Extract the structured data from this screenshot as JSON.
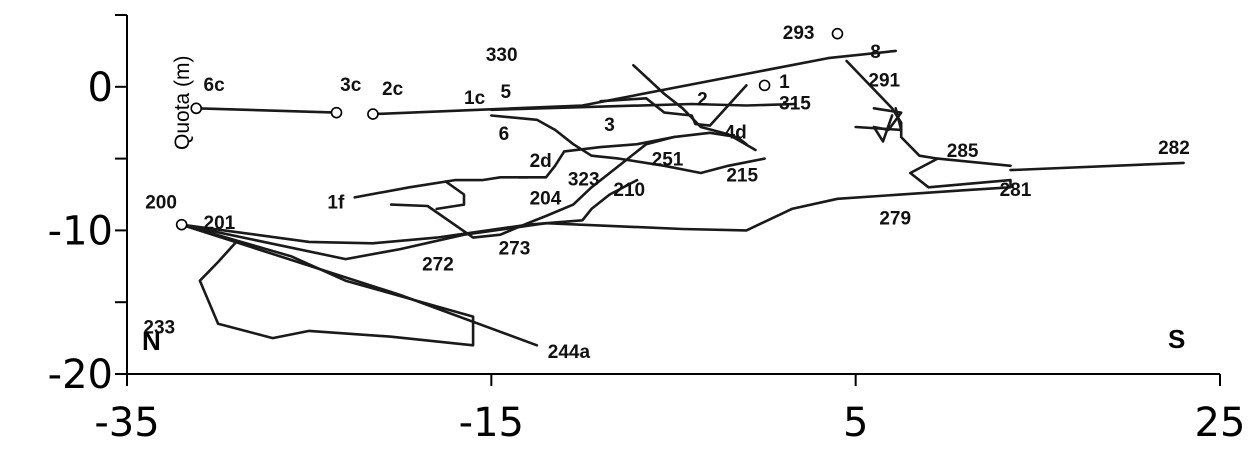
{
  "chart_data": {
    "type": "line",
    "title": "",
    "xlabel": "",
    "ylabel": "Quota (m)",
    "xlim": [
      -35,
      25
    ],
    "ylim": [
      -20,
      5
    ],
    "x_ticks": [
      "-35",
      "-15",
      "5",
      "25"
    ],
    "y_ticks": [
      "0",
      "-10",
      "-20"
    ],
    "grid": false,
    "legend": "none",
    "corner_labels": {
      "left": "N",
      "right": "S"
    },
    "line_color": "#1a1a1a",
    "series": [
      {
        "values": [
          [
            -31.2,
            -1.5
          ],
          [
            -23.5,
            -1.8
          ]
        ]
      },
      {
        "values": [
          [
            -21.5,
            -1.9
          ],
          [
            -10.0,
            -1.3
          ],
          [
            3.5,
            2.0
          ],
          [
            7.2,
            2.5
          ]
        ]
      },
      {
        "values": [
          [
            -15.0,
            -1.6
          ],
          [
            -4.0,
            -1.2
          ],
          [
            -1.0,
            -1.3
          ],
          [
            1.7,
            -1.2
          ]
        ]
      },
      {
        "values": [
          [
            -7.2,
            1.5
          ],
          [
            -5.5,
            -0.5
          ],
          [
            -4.5,
            -1.5
          ],
          [
            -3.5,
            -2.8
          ],
          [
            -2.0,
            -3.3
          ],
          [
            -0.5,
            -4.4
          ]
        ]
      },
      {
        "values": [
          [
            -15.0,
            -2.0
          ],
          [
            -12.5,
            -2.3
          ],
          [
            -11.5,
            -3.0
          ],
          [
            -10.5,
            -4.0
          ],
          [
            -9.5,
            -4.8
          ],
          [
            -8.0,
            -5.0
          ],
          [
            -5.5,
            -5.5
          ],
          [
            -3.5,
            -6.0
          ],
          [
            -2.0,
            -5.5
          ],
          [
            0.0,
            -5.0
          ]
        ]
      },
      {
        "values": [
          [
            -13.5,
            -6.3
          ],
          [
            -12.0,
            -6.3
          ],
          [
            -11.5,
            -5.5
          ],
          [
            -11.0,
            -4.5
          ],
          [
            -9.0,
            -4.2
          ],
          [
            -7.0,
            -4.0
          ],
          [
            -5.0,
            -3.5
          ],
          [
            -3.0,
            -3.2
          ],
          [
            -1.5,
            -3.5
          ],
          [
            -1.0,
            -4.0
          ]
        ]
      },
      {
        "values": [
          [
            -9.0,
            -1.0
          ],
          [
            -6.5,
            -0.8
          ],
          [
            -5.5,
            -1.8
          ],
          [
            -4.0,
            -2.0
          ],
          [
            -3.8,
            -2.6
          ],
          [
            -3.0,
            -2.7
          ],
          [
            -1.0,
            0.1
          ]
        ]
      },
      {
        "values": [
          [
            -22.5,
            -7.7
          ],
          [
            -19.5,
            -7.0
          ],
          [
            -17.0,
            -6.5
          ],
          [
            -15.5,
            -6.5
          ],
          [
            -14.5,
            -6.3
          ],
          [
            -13.0,
            -6.3
          ]
        ]
      },
      {
        "values": [
          [
            -20.5,
            -8.2
          ],
          [
            -18.5,
            -8.3
          ],
          [
            -16.0,
            -10.5
          ],
          [
            -14.5,
            -10.3
          ],
          [
            -13.0,
            -9.5
          ],
          [
            -12.0,
            -9.0
          ],
          [
            -10.5,
            -8.2
          ],
          [
            -9.5,
            -7.0
          ],
          [
            -8.5,
            -6.0
          ],
          [
            -7.5,
            -5.0
          ],
          [
            -6.5,
            -4.0
          ],
          [
            -5.0,
            -3.5
          ]
        ]
      },
      {
        "values": [
          [
            -17.5,
            -6.6
          ],
          [
            -16.5,
            -7.5
          ],
          [
            -16.5,
            -8.2
          ],
          [
            -18.0,
            -8.5
          ]
        ]
      },
      {
        "values": [
          [
            -32.0,
            -9.6
          ],
          [
            -25.0,
            -10.8
          ],
          [
            -21.5,
            -10.9
          ],
          [
            -18.0,
            -10.5
          ],
          [
            -13.0,
            -9.6
          ],
          [
            -10.0,
            -9.3
          ],
          [
            -9.5,
            -8.5
          ],
          [
            -8.5,
            -7.5
          ],
          [
            -7.0,
            -6.5
          ]
        ]
      },
      {
        "values": [
          [
            -32.0,
            -9.6
          ],
          [
            -23.0,
            -12.0
          ],
          [
            -20.0,
            -11.3
          ],
          [
            -16.5,
            -10.3
          ],
          [
            -12.0,
            -9.5
          ],
          [
            -4.5,
            -9.9
          ],
          [
            -1.0,
            -10.0
          ],
          [
            1.5,
            -8.5
          ],
          [
            4.0,
            -7.8
          ],
          [
            11.0,
            -7.2
          ],
          [
            13.5,
            -7.0
          ],
          [
            13.5,
            -6.5
          ],
          [
            9.0,
            -7.0
          ],
          [
            8.0,
            -6.0
          ],
          [
            9.5,
            -5.0
          ],
          [
            8.5,
            -4.8
          ],
          [
            7.5,
            -3.5
          ],
          [
            7.5,
            -2.5
          ],
          [
            7.0,
            -1.5
          ],
          [
            4.5,
            1.8
          ]
        ]
      },
      {
        "values": [
          [
            13.5,
            -5.8
          ],
          [
            23.0,
            -5.3
          ]
        ]
      },
      {
        "values": [
          [
            9.5,
            -5.0
          ],
          [
            13.5,
            -5.5
          ]
        ]
      },
      {
        "values": [
          [
            6.0,
            -1.5
          ],
          [
            7.5,
            -1.8
          ],
          [
            6.8,
            -3.0
          ],
          [
            6.0,
            -2.8
          ],
          [
            6.5,
            -3.8
          ],
          [
            7.0,
            -2.0
          ]
        ]
      },
      {
        "values": [
          [
            5.0,
            -2.8
          ],
          [
            7.5,
            -3.0
          ],
          [
            7.2,
            -1.5
          ]
        ]
      },
      {
        "values": [
          [
            -32.0,
            -9.6
          ],
          [
            -29.0,
            -10.8
          ],
          [
            -30.0,
            -12.2
          ],
          [
            -31.0,
            -13.5
          ],
          [
            -30.0,
            -16.5
          ],
          [
            -27.0,
            -17.5
          ],
          [
            -25.0,
            -17.0
          ],
          [
            -20.5,
            -17.4
          ],
          [
            -16.0,
            -18.0
          ],
          [
            -16.0,
            -16.0
          ],
          [
            -23.0,
            -13.5
          ],
          [
            -26.0,
            -11.8
          ],
          [
            -32.0,
            -9.6
          ]
        ]
      },
      {
        "values": [
          [
            -32.0,
            -9.6
          ],
          [
            -20.0,
            -14.5
          ],
          [
            -12.5,
            -18.0
          ]
        ]
      }
    ],
    "stations": [
      {
        "label": "6c",
        "x": -31.2,
        "y": -1.5,
        "circle": true,
        "dx": 0.4,
        "dy": 1.7
      },
      {
        "label": "3c",
        "x": -23.5,
        "y": -1.8,
        "circle": true,
        "dx": 0.2,
        "dy": 2.0
      },
      {
        "label": "2c",
        "x": -21.5,
        "y": -1.9,
        "circle": true,
        "dx": 0.5,
        "dy": 1.8
      },
      {
        "label": "1c",
        "x": -16.5,
        "y": -0.7,
        "circle": false,
        "dx": 0,
        "dy": 0
      },
      {
        "label": "5",
        "x": -14.5,
        "y": -0.3,
        "circle": false,
        "dx": 0,
        "dy": 0
      },
      {
        "label": "6",
        "x": -14.6,
        "y": -3.2,
        "circle": false,
        "dx": 0,
        "dy": 0
      },
      {
        "label": "330",
        "x": -15.3,
        "y": 2.3,
        "circle": false,
        "dx": 0,
        "dy": 0
      },
      {
        "label": "3",
        "x": -8.8,
        "y": -2.6,
        "circle": false,
        "dx": 0,
        "dy": 0
      },
      {
        "label": "2",
        "x": -3.7,
        "y": -0.8,
        "circle": false,
        "dx": 0,
        "dy": 0
      },
      {
        "label": "1",
        "x": 0.0,
        "y": 0.1,
        "circle": true,
        "dx": 0.8,
        "dy": 0.3
      },
      {
        "label": "293",
        "x": 4.0,
        "y": 3.7,
        "circle": true,
        "dx": -3.0,
        "dy": 0.1
      },
      {
        "label": "8",
        "x": 5.8,
        "y": 2.5,
        "circle": false,
        "dx": 0,
        "dy": 0
      },
      {
        "label": "291",
        "x": 5.7,
        "y": 0.5,
        "circle": false,
        "dx": 0,
        "dy": 0
      },
      {
        "label": "315",
        "x": 0.8,
        "y": -1.1,
        "circle": false,
        "dx": 0,
        "dy": 0
      },
      {
        "label": "4d",
        "x": -2.2,
        "y": -3.1,
        "circle": false,
        "dx": 0,
        "dy": 0
      },
      {
        "label": "251",
        "x": -6.2,
        "y": -5.0,
        "circle": false,
        "dx": 0,
        "dy": 0
      },
      {
        "label": "215",
        "x": -2.1,
        "y": -6.1,
        "circle": false,
        "dx": 0,
        "dy": 0
      },
      {
        "label": "2d",
        "x": -12.9,
        "y": -5.1,
        "circle": false,
        "dx": 0,
        "dy": 0
      },
      {
        "label": "323",
        "x": -10.8,
        "y": -6.4,
        "circle": false,
        "dx": 0,
        "dy": 0
      },
      {
        "label": "210",
        "x": -8.3,
        "y": -7.1,
        "circle": false,
        "dx": 0,
        "dy": 0
      },
      {
        "label": "204",
        "x": -12.9,
        "y": -7.7,
        "circle": false,
        "dx": 0,
        "dy": 0
      },
      {
        "label": "1f",
        "x": -24.0,
        "y": -8.0,
        "circle": false,
        "dx": 0,
        "dy": 0
      },
      {
        "label": "200",
        "x": -32.0,
        "y": -9.6,
        "circle": true,
        "dx": -2.0,
        "dy": 1.6
      },
      {
        "label": "201",
        "x": -30.8,
        "y": -9.4,
        "circle": false,
        "dx": 0,
        "dy": 0
      },
      {
        "label": "272",
        "x": -18.8,
        "y": -12.3,
        "circle": false,
        "dx": 0,
        "dy": 0
      },
      {
        "label": "273",
        "x": -14.6,
        "y": -11.2,
        "circle": false,
        "dx": 0,
        "dy": 0
      },
      {
        "label": "233",
        "x": -34.1,
        "y": -16.7,
        "circle": false,
        "dx": 0,
        "dy": 0
      },
      {
        "label": "244a",
        "x": -11.9,
        "y": -18.4,
        "circle": false,
        "dx": 0,
        "dy": 0
      },
      {
        "label": "285",
        "x": 10.0,
        "y": -4.4,
        "circle": false,
        "dx": 0,
        "dy": 0
      },
      {
        "label": "282",
        "x": 21.6,
        "y": -4.2,
        "circle": false,
        "dx": 0,
        "dy": 0
      },
      {
        "label": "281",
        "x": 12.9,
        "y": -7.1,
        "circle": false,
        "dx": 0,
        "dy": 0
      },
      {
        "label": "279",
        "x": 6.3,
        "y": -9.1,
        "circle": false,
        "dx": 0,
        "dy": 0
      }
    ]
  }
}
